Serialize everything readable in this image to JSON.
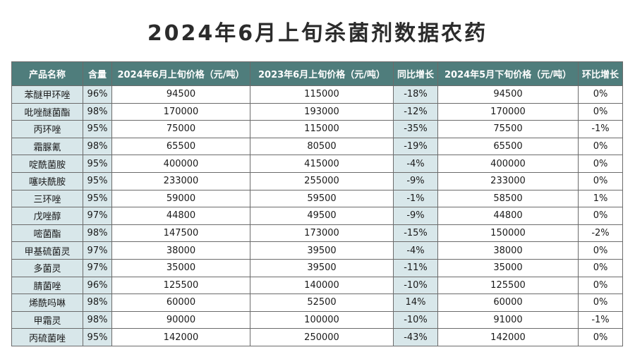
{
  "title": "2024年6月上旬杀菌剂数据农药",
  "table": {
    "headers": [
      "产品名称",
      "含量",
      "2024年6月上旬价格（元/吨）",
      "2023年6月上旬价格（元/吨）",
      "同比增长",
      "2024年5月下旬价格（元/吨）",
      "环比增长"
    ],
    "rows": [
      [
        "苯醚甲环唑",
        "96%",
        "94500",
        "115000",
        "-18%",
        "94500",
        "0%"
      ],
      [
        "吡唑醚菌酯",
        "98%",
        "170000",
        "193000",
        "-12%",
        "170000",
        "0%"
      ],
      [
        "丙环唑",
        "95%",
        "75000",
        "115000",
        "-35%",
        "75500",
        "-1%"
      ],
      [
        "霜脲氰",
        "98%",
        "65500",
        "80500",
        "-19%",
        "65500",
        "0%"
      ],
      [
        "啶酰菌胺",
        "95%",
        "400000",
        "415000",
        "-4%",
        "400000",
        "0%"
      ],
      [
        "噻呋酰胺",
        "95%",
        "233000",
        "255000",
        "-9%",
        "233000",
        "0%"
      ],
      [
        "三环唑",
        "95%",
        "59000",
        "59500",
        "-1%",
        "58500",
        "1%"
      ],
      [
        "戊唑醇",
        "97%",
        "44800",
        "49500",
        "-9%",
        "44800",
        "0%"
      ],
      [
        "嘧菌酯",
        "98%",
        "147500",
        "173000",
        "-15%",
        "150000",
        "-2%"
      ],
      [
        "甲基硫菌灵",
        "97%",
        "38000",
        "39500",
        "-4%",
        "38000",
        "0%"
      ],
      [
        "多菌灵",
        "97%",
        "35000",
        "39500",
        "-11%",
        "35000",
        "0%"
      ],
      [
        "腈菌唑",
        "96%",
        "125500",
        "140000",
        "-10%",
        "125500",
        "0%"
      ],
      [
        "烯酰吗啉",
        "98%",
        "60000",
        "52500",
        "14%",
        "60000",
        "0%"
      ],
      [
        "甲霜灵",
        "98%",
        "90000",
        "100000",
        "-10%",
        "91000",
        "-1%"
      ],
      [
        "丙硫菌唑",
        "95%",
        "142000",
        "250000",
        "-43%",
        "142000",
        "0%"
      ]
    ]
  },
  "colors": {
    "header_bg": "#4f7d7c",
    "header_text": "#ffffff",
    "highlight_col_bg": "#d8e7ea",
    "border": "#6b6b6b"
  }
}
